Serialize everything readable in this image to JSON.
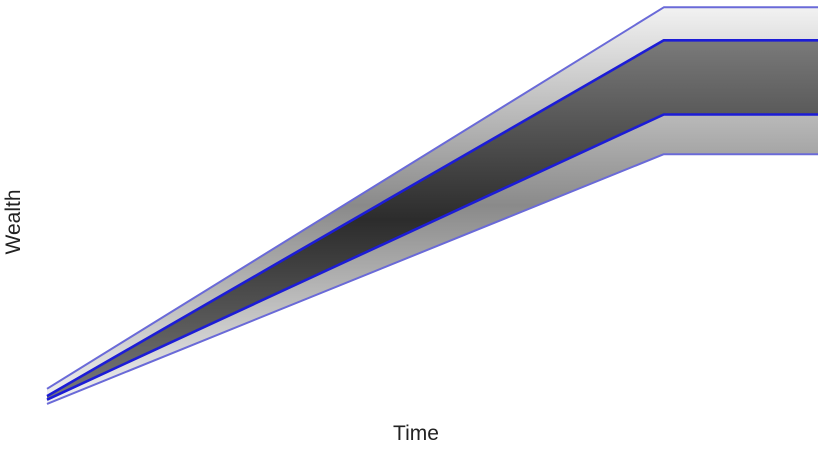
{
  "chart_data": {
    "type": "area",
    "title": "",
    "xlabel": "Time",
    "ylabel": "Wealth",
    "grid": false,
    "legend": "none",
    "xlim": [
      0,
      1
    ],
    "ylim": [
      0,
      1
    ],
    "x": [
      0,
      0.8,
      1
    ],
    "bands": [
      {
        "lower": [
          0.0175,
          0.6325,
          0.6325
        ],
        "upper": [
          0.0547,
          0.9944,
          0.9944
        ],
        "shading": "light-outer"
      },
      {
        "lower": [
          0.0279,
          0.7302,
          0.7302
        ],
        "upper": [
          0.0367,
          0.913,
          0.913
        ],
        "shading": "dark-inner"
      }
    ],
    "series": [
      {
        "values": [
          0.0175,
          0.6325,
          0.6325
        ]
      },
      {
        "values": [
          0.0279,
          0.7302,
          0.7302
        ]
      },
      {
        "values": [
          0.0367,
          0.913,
          0.913
        ]
      },
      {
        "values": [
          0.0547,
          0.9944,
          0.9944
        ]
      }
    ],
    "colors": {
      "outer_line": "#6a6ad8",
      "inner_line": "#1c1cd6",
      "band_dark": "#2e2e2e",
      "band_light": "#e6e6e6"
    }
  }
}
